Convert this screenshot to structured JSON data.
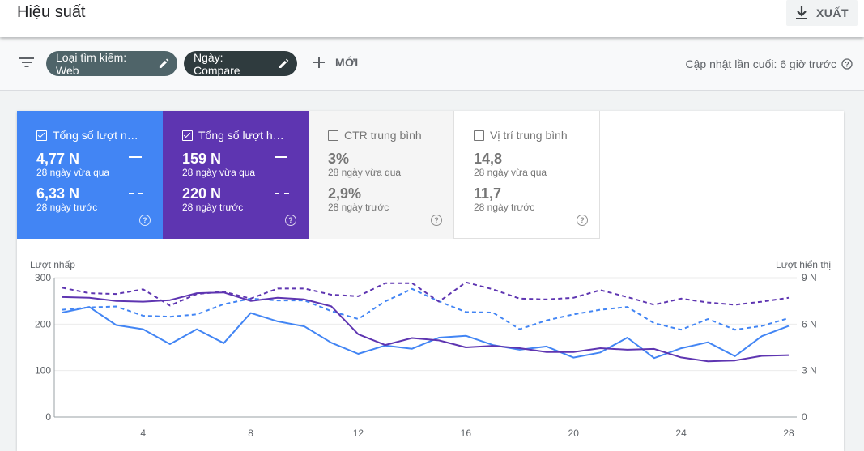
{
  "header": {
    "title": "Hiệu suất",
    "export_label": "XUẤT"
  },
  "filters": {
    "chip_search_type": "Loại tìm kiếm: Web",
    "chip_date": "Ngày: Compare",
    "new_label": "MỚI",
    "last_updated": "Cập nhật lần cuối: 6 giờ trước"
  },
  "metrics": [
    {
      "title": "Tổng số lượt nh…",
      "checked": true,
      "value1": "4,77 N",
      "label1": "28 ngày vừa qua",
      "value2": "6,33 N",
      "label2": "28 ngày trước",
      "bg": "#4285f4"
    },
    {
      "title": "Tổng số lượt hiể…",
      "checked": true,
      "value1": "159 N",
      "label1": "28 ngày vừa qua",
      "value2": "220 N",
      "label2": "28 ngày trước",
      "bg": "#5e35b1"
    },
    {
      "title": "CTR trung bình",
      "checked": false,
      "value1": "3%",
      "label1": "28 ngày vừa qua",
      "value2": "2,9%",
      "label2": "28 ngày trước",
      "bg": "#f5f5f5"
    },
    {
      "title": "Vị trí trung bình",
      "checked": false,
      "value1": "14,8",
      "label1": "28 ngày vừa qua",
      "value2": "11,7",
      "label2": "28 ngày trước",
      "bg": "#ffffff"
    }
  ],
  "chart_data": {
    "type": "line",
    "left_axis_label": "Lượt nhấp",
    "right_axis_label": "Lượt hiển thị",
    "left_ticks": [
      "0",
      "100",
      "200",
      "300"
    ],
    "right_ticks": [
      "0",
      "3 N",
      "6 N",
      "9 N"
    ],
    "x_ticks": [
      "4",
      "8",
      "12",
      "16",
      "20",
      "24",
      "28"
    ],
    "ylim_left": [
      0,
      300
    ],
    "ylim_right": [
      0,
      9000
    ],
    "x": [
      1,
      2,
      3,
      4,
      5,
      6,
      7,
      8,
      9,
      10,
      11,
      12,
      13,
      14,
      15,
      16,
      17,
      18,
      19,
      20,
      21,
      22,
      23,
      24,
      25,
      26,
      27,
      28
    ],
    "series": [
      {
        "axis": "left",
        "color": "#4285f4",
        "dashed": false,
        "values": [
          225,
          237,
          198,
          189,
          157,
          189,
          159,
          224,
          206,
          195,
          160,
          136,
          154,
          147,
          171,
          175,
          155,
          145,
          152,
          128,
          139,
          171,
          127,
          148,
          161,
          131,
          174,
          196
        ]
      },
      {
        "axis": "left",
        "color": "#4285f4",
        "dashed": true,
        "values": [
          231,
          236,
          238,
          218,
          216,
          221,
          243,
          255,
          251,
          251,
          228,
          211,
          249,
          276,
          249,
          226,
          225,
          189,
          208,
          221,
          231,
          237,
          202,
          188,
          211,
          188,
          196,
          213
        ]
      },
      {
        "axis": "right",
        "color": "#5e35b1",
        "dashed": false,
        "values": [
          7750,
          7700,
          7500,
          7450,
          7550,
          8000,
          8050,
          7500,
          7700,
          7600,
          7150,
          5350,
          4650,
          5100,
          4950,
          4500,
          4600,
          4450,
          4200,
          4200,
          4450,
          4350,
          4400,
          3850,
          3600,
          3650,
          3950,
          4000
        ]
      },
      {
        "axis": "right",
        "color": "#5e35b1",
        "dashed": true,
        "values": [
          8350,
          8000,
          7950,
          8250,
          7200,
          7950,
          8100,
          7650,
          8300,
          8300,
          7900,
          7800,
          8650,
          8650,
          7450,
          8700,
          8250,
          7650,
          7600,
          7700,
          8200,
          7750,
          7250,
          7650,
          7400,
          7250,
          7450,
          7700
        ]
      }
    ]
  }
}
